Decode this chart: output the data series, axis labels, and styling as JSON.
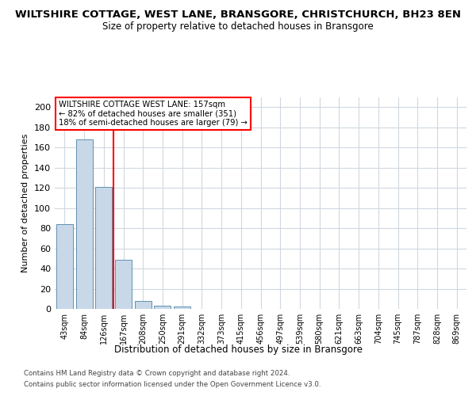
{
  "title": "WILTSHIRE COTTAGE, WEST LANE, BRANSGORE, CHRISTCHURCH, BH23 8EN",
  "subtitle": "Size of property relative to detached houses in Bransgore",
  "xlabel": "Distribution of detached houses by size in Bransgore",
  "ylabel": "Number of detached properties",
  "footnote1": "Contains HM Land Registry data © Crown copyright and database right 2024.",
  "footnote2": "Contains public sector information licensed under the Open Government Licence v3.0.",
  "bar_labels": [
    "43sqm",
    "84sqm",
    "126sqm",
    "167sqm",
    "208sqm",
    "250sqm",
    "291sqm",
    "332sqm",
    "373sqm",
    "415sqm",
    "456sqm",
    "497sqm",
    "539sqm",
    "580sqm",
    "621sqm",
    "663sqm",
    "704sqm",
    "745sqm",
    "787sqm",
    "828sqm",
    "869sqm"
  ],
  "bar_values": [
    84,
    168,
    121,
    49,
    8,
    3,
    2,
    0,
    0,
    0,
    0,
    0,
    0,
    0,
    0,
    0,
    0,
    0,
    0,
    0,
    0
  ],
  "bar_color": "#c8d8e8",
  "bar_edge_color": "#6090b0",
  "ylim": [
    0,
    210
  ],
  "yticks": [
    0,
    20,
    40,
    60,
    80,
    100,
    120,
    140,
    160,
    180,
    200
  ],
  "red_line_x": 2.5,
  "annotation_title": "WILTSHIRE COTTAGE WEST LANE: 157sqm",
  "annotation_line1": "← 82% of detached houses are smaller (351)",
  "annotation_line2": "18% of semi-detached houses are larger (79) →",
  "grid_color": "#d0d8e0",
  "background_color": "#ffffff"
}
